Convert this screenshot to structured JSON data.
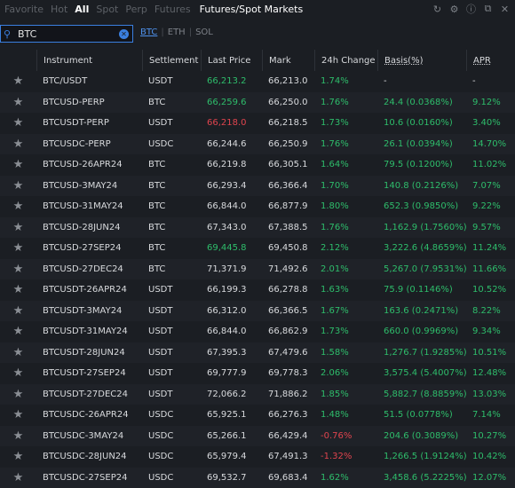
{
  "tabs": [
    "Favorite",
    "Hot",
    "All",
    "Spot",
    "Perp",
    "Futures"
  ],
  "active_tab": "All",
  "title": "Futures/Spot Markets",
  "search": {
    "value": "BTC"
  },
  "quick_filters": [
    "BTC",
    "ETH",
    "SOL"
  ],
  "columns": [
    "Instrument",
    "Settlement",
    "Last Price",
    "Mark",
    "24h Change",
    "Basis(%)",
    "APR"
  ],
  "colors": {
    "positive": "#2ebd6b",
    "negative": "#e0444e",
    "accent": "#3a7fe0"
  },
  "rows": [
    {
      "inst": "BTC/USDT",
      "set": "USDT",
      "last": "66,213.2",
      "last_dir": "up",
      "mark": "66,213.0",
      "chg": "1.74%",
      "chg_dir": "up",
      "basis": "-",
      "apr": "-"
    },
    {
      "inst": "BTCUSD-PERP",
      "set": "BTC",
      "last": "66,259.6",
      "last_dir": "up",
      "mark": "66,250.0",
      "chg": "1.76%",
      "chg_dir": "up",
      "basis": "24.4 (0.0368%)",
      "apr": "9.12%"
    },
    {
      "inst": "BTCUSDT-PERP",
      "set": "USDT",
      "last": "66,218.0",
      "last_dir": "down",
      "mark": "66,218.5",
      "chg": "1.73%",
      "chg_dir": "up",
      "basis": "10.6 (0.0160%)",
      "apr": "3.40%"
    },
    {
      "inst": "BTCUSDC-PERP",
      "set": "USDC",
      "last": "66,244.6",
      "last_dir": "none",
      "mark": "66,250.9",
      "chg": "1.76%",
      "chg_dir": "up",
      "basis": "26.1 (0.0394%)",
      "apr": "14.70%"
    },
    {
      "inst": "BTCUSD-26APR24",
      "set": "BTC",
      "last": "66,219.8",
      "last_dir": "none",
      "mark": "66,305.1",
      "chg": "1.64%",
      "chg_dir": "up",
      "basis": "79.5 (0.1200%)",
      "apr": "11.02%"
    },
    {
      "inst": "BTCUSD-3MAY24",
      "set": "BTC",
      "last": "66,293.4",
      "last_dir": "none",
      "mark": "66,366.4",
      "chg": "1.70%",
      "chg_dir": "up",
      "basis": "140.8 (0.2126%)",
      "apr": "7.07%"
    },
    {
      "inst": "BTCUSD-31MAY24",
      "set": "BTC",
      "last": "66,844.0",
      "last_dir": "none",
      "mark": "66,877.9",
      "chg": "1.80%",
      "chg_dir": "up",
      "basis": "652.3 (0.9850%)",
      "apr": "9.22%"
    },
    {
      "inst": "BTCUSD-28JUN24",
      "set": "BTC",
      "last": "67,343.0",
      "last_dir": "none",
      "mark": "67,388.5",
      "chg": "1.76%",
      "chg_dir": "up",
      "basis": "1,162.9 (1.7560%)",
      "apr": "9.57%"
    },
    {
      "inst": "BTCUSD-27SEP24",
      "set": "BTC",
      "last": "69,445.8",
      "last_dir": "up",
      "mark": "69,450.8",
      "chg": "2.12%",
      "chg_dir": "up",
      "basis": "3,222.6 (4.8659%)",
      "apr": "11.24%"
    },
    {
      "inst": "BTCUSD-27DEC24",
      "set": "BTC",
      "last": "71,371.9",
      "last_dir": "none",
      "mark": "71,492.6",
      "chg": "2.01%",
      "chg_dir": "up",
      "basis": "5,267.0 (7.9531%)",
      "apr": "11.66%"
    },
    {
      "inst": "BTCUSDT-26APR24",
      "set": "USDT",
      "last": "66,199.3",
      "last_dir": "none",
      "mark": "66,278.8",
      "chg": "1.63%",
      "chg_dir": "up",
      "basis": "75.9 (0.1146%)",
      "apr": "10.52%"
    },
    {
      "inst": "BTCUSDT-3MAY24",
      "set": "USDT",
      "last": "66,312.0",
      "last_dir": "none",
      "mark": "66,366.5",
      "chg": "1.67%",
      "chg_dir": "up",
      "basis": "163.6 (0.2471%)",
      "apr": "8.22%"
    },
    {
      "inst": "BTCUSDT-31MAY24",
      "set": "USDT",
      "last": "66,844.0",
      "last_dir": "none",
      "mark": "66,862.9",
      "chg": "1.73%",
      "chg_dir": "up",
      "basis": "660.0 (0.9969%)",
      "apr": "9.34%"
    },
    {
      "inst": "BTCUSDT-28JUN24",
      "set": "USDT",
      "last": "67,395.3",
      "last_dir": "none",
      "mark": "67,479.6",
      "chg": "1.58%",
      "chg_dir": "up",
      "basis": "1,276.7 (1.9285%)",
      "apr": "10.51%"
    },
    {
      "inst": "BTCUSDT-27SEP24",
      "set": "USDT",
      "last": "69,777.9",
      "last_dir": "none",
      "mark": "69,778.3",
      "chg": "2.06%",
      "chg_dir": "up",
      "basis": "3,575.4 (5.4007%)",
      "apr": "12.48%"
    },
    {
      "inst": "BTCUSDT-27DEC24",
      "set": "USDT",
      "last": "72,066.2",
      "last_dir": "none",
      "mark": "71,886.2",
      "chg": "1.85%",
      "chg_dir": "up",
      "basis": "5,882.7 (8.8859%)",
      "apr": "13.03%"
    },
    {
      "inst": "BTCUSDC-26APR24",
      "set": "USDC",
      "last": "65,925.1",
      "last_dir": "none",
      "mark": "66,276.3",
      "chg": "1.48%",
      "chg_dir": "up",
      "basis": "51.5 (0.0778%)",
      "apr": "7.14%"
    },
    {
      "inst": "BTCUSDC-3MAY24",
      "set": "USDC",
      "last": "65,266.1",
      "last_dir": "none",
      "mark": "66,429.4",
      "chg": "-0.76%",
      "chg_dir": "down",
      "basis": "204.6 (0.3089%)",
      "apr": "10.27%"
    },
    {
      "inst": "BTCUSDC-28JUN24",
      "set": "USDC",
      "last": "65,979.4",
      "last_dir": "none",
      "mark": "67,491.3",
      "chg": "-1.32%",
      "chg_dir": "down",
      "basis": "1,266.5 (1.9124%)",
      "apr": "10.42%"
    },
    {
      "inst": "BTCUSDC-27SEP24",
      "set": "USDC",
      "last": "69,532.7",
      "last_dir": "none",
      "mark": "69,683.4",
      "chg": "1.62%",
      "chg_dir": "up",
      "basis": "3,458.6 (5.2225%)",
      "apr": "12.07%"
    }
  ]
}
